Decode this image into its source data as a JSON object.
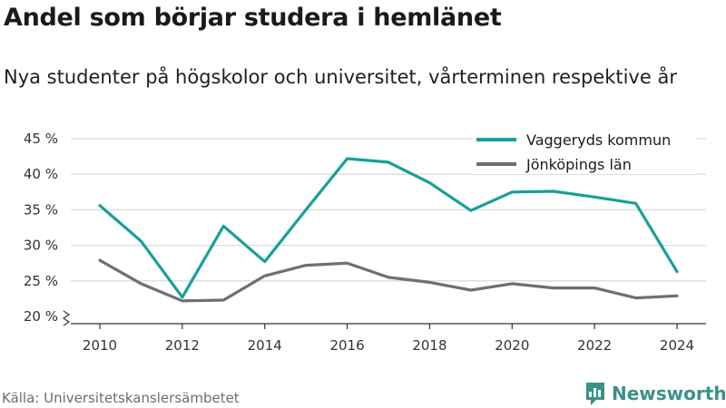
{
  "header": {
    "title": "Andel som börjar studera i hemlänet",
    "subtitle": "Nya studenter på högskolor och universitet, vårterminen respektive år"
  },
  "footer": {
    "source": "Källa: Universitetskanslersämbetet",
    "brand": "Newsworthy"
  },
  "colors": {
    "vaggeryd": "#17a097",
    "jonkoping": "#6f6e73",
    "grid": "#dcdcdc",
    "brand": "#3a9189"
  },
  "chart_data": {
    "type": "line",
    "x": [
      2010,
      2011,
      2012,
      2013,
      2014,
      2015,
      2016,
      2017,
      2018,
      2019,
      2020,
      2021,
      2022,
      2023,
      2024
    ],
    "xticks": [
      "2010",
      "2012",
      "2014",
      "2016",
      "2018",
      "2020",
      "2022",
      "2024"
    ],
    "yticks": [
      "20 %",
      "25 %",
      "30 %",
      "35 %",
      "40 %",
      "45 %"
    ],
    "ylim": [
      20,
      45
    ],
    "grid": true,
    "y_axis_break": true,
    "legend_position": "top-right",
    "series": [
      {
        "name": "Vaggeryds kommun",
        "color": "#17a097",
        "values": [
          35.6,
          30.6,
          22.7,
          32.7,
          27.7,
          35.0,
          42.2,
          41.7,
          38.8,
          34.9,
          37.5,
          37.6,
          36.8,
          35.9,
          26.3
        ]
      },
      {
        "name": "Jönköpings län",
        "color": "#6f6e73",
        "values": [
          27.9,
          24.6,
          22.2,
          22.3,
          25.7,
          27.2,
          27.5,
          25.5,
          24.8,
          23.7,
          24.6,
          24.0,
          24.0,
          22.6,
          22.9
        ]
      }
    ]
  }
}
